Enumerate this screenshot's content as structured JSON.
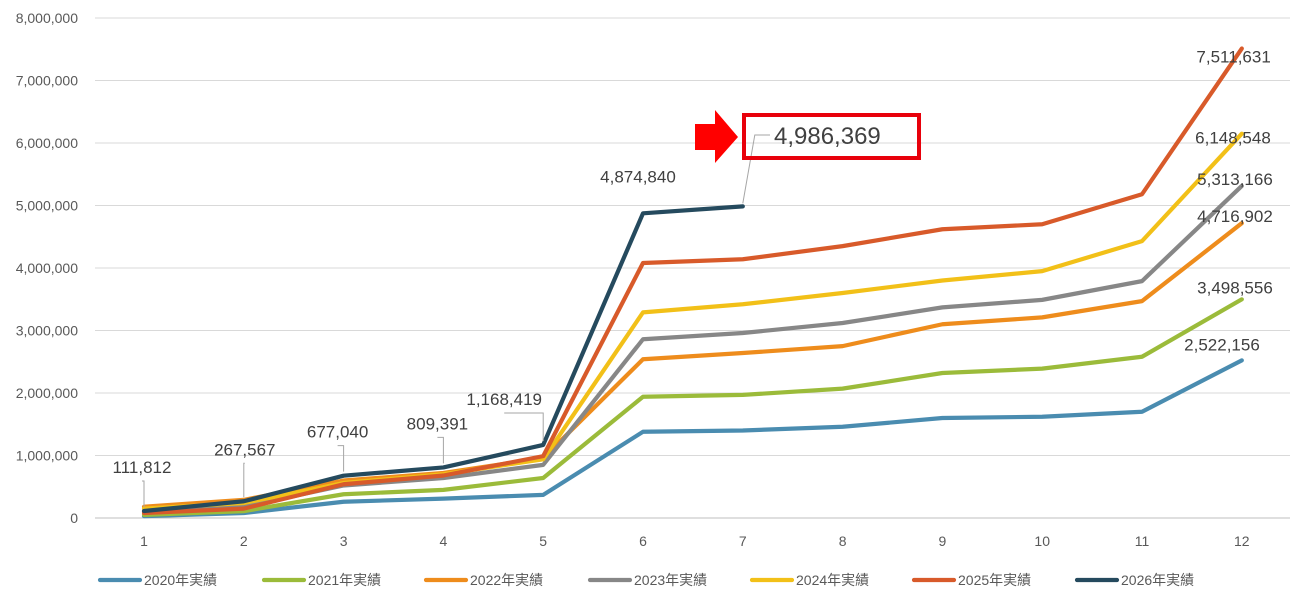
{
  "chart_data": {
    "type": "line",
    "title": "",
    "xlabel": "",
    "ylabel": "",
    "x": [
      1,
      2,
      3,
      4,
      5,
      6,
      7,
      8,
      9,
      10,
      11,
      12
    ],
    "ylim": [
      0,
      8000000
    ],
    "ytick_labels": [
      "0",
      "1,000,000",
      "2,000,000",
      "3,000,000",
      "4,000,000",
      "5,000,000",
      "6,000,000",
      "7,000,000",
      "8,000,000"
    ],
    "grid": true,
    "legend_position": "bottom",
    "series": [
      {
        "name": "2020年実績",
        "color": "#4a8cb0",
        "values": [
          30000,
          80000,
          260000,
          310000,
          370000,
          1380000,
          1400000,
          1460000,
          1600000,
          1620000,
          1700000,
          2522156
        ]
      },
      {
        "name": "2021年実績",
        "color": "#9bbb3a",
        "values": [
          50000,
          110000,
          380000,
          450000,
          640000,
          1940000,
          1970000,
          2070000,
          2320000,
          2390000,
          2580000,
          3498556
        ]
      },
      {
        "name": "2022年実績",
        "color": "#ee8c1c",
        "values": [
          180000,
          290000,
          600000,
          720000,
          960000,
          2540000,
          2640000,
          2750000,
          3100000,
          3210000,
          3470000,
          4716902
        ]
      },
      {
        "name": "2023年実績",
        "color": "#878787",
        "values": [
          100000,
          180000,
          520000,
          640000,
          850000,
          2860000,
          2960000,
          3120000,
          3370000,
          3490000,
          3790000,
          5313166
        ]
      },
      {
        "name": "2024年実績",
        "color": "#f2c018",
        "values": [
          150000,
          240000,
          560000,
          700000,
          940000,
          3290000,
          3420000,
          3600000,
          3800000,
          3950000,
          4430000,
          6148548
        ]
      },
      {
        "name": "2025年実績",
        "color": "#d85a2a",
        "values": [
          80000,
          150000,
          540000,
          680000,
          990000,
          4080000,
          4140000,
          4350000,
          4620000,
          4700000,
          5180000,
          7511631
        ]
      },
      {
        "name": "2026年実績",
        "color": "#254a5e",
        "values": [
          111812,
          267567,
          677040,
          809391,
          1168419,
          4874840,
          4986369,
          null,
          null,
          null,
          null,
          null
        ]
      }
    ],
    "data_labels": [
      {
        "series": 6,
        "index": 0,
        "text": "111,812"
      },
      {
        "series": 6,
        "index": 1,
        "text": "267,567"
      },
      {
        "series": 6,
        "index": 2,
        "text": "677,040"
      },
      {
        "series": 6,
        "index": 3,
        "text": "809,391"
      },
      {
        "series": 6,
        "index": 4,
        "text": "1,168,419"
      },
      {
        "series": 6,
        "index": 5,
        "text": "4,874,840"
      },
      {
        "series": 5,
        "index": 11,
        "text": "7,511,631"
      },
      {
        "series": 4,
        "index": 11,
        "text": "6,148,548"
      },
      {
        "series": 3,
        "index": 11,
        "text": "5,313,166"
      },
      {
        "series": 2,
        "index": 11,
        "text": "4,716,902"
      },
      {
        "series": 1,
        "index": 11,
        "text": "3,498,556"
      },
      {
        "series": 0,
        "index": 11,
        "text": "2,522,156"
      }
    ],
    "highlight": {
      "series": 6,
      "index": 6,
      "text": "4,986,369",
      "box_color": "#e8000b",
      "arrow_color": "#ff0000"
    }
  }
}
